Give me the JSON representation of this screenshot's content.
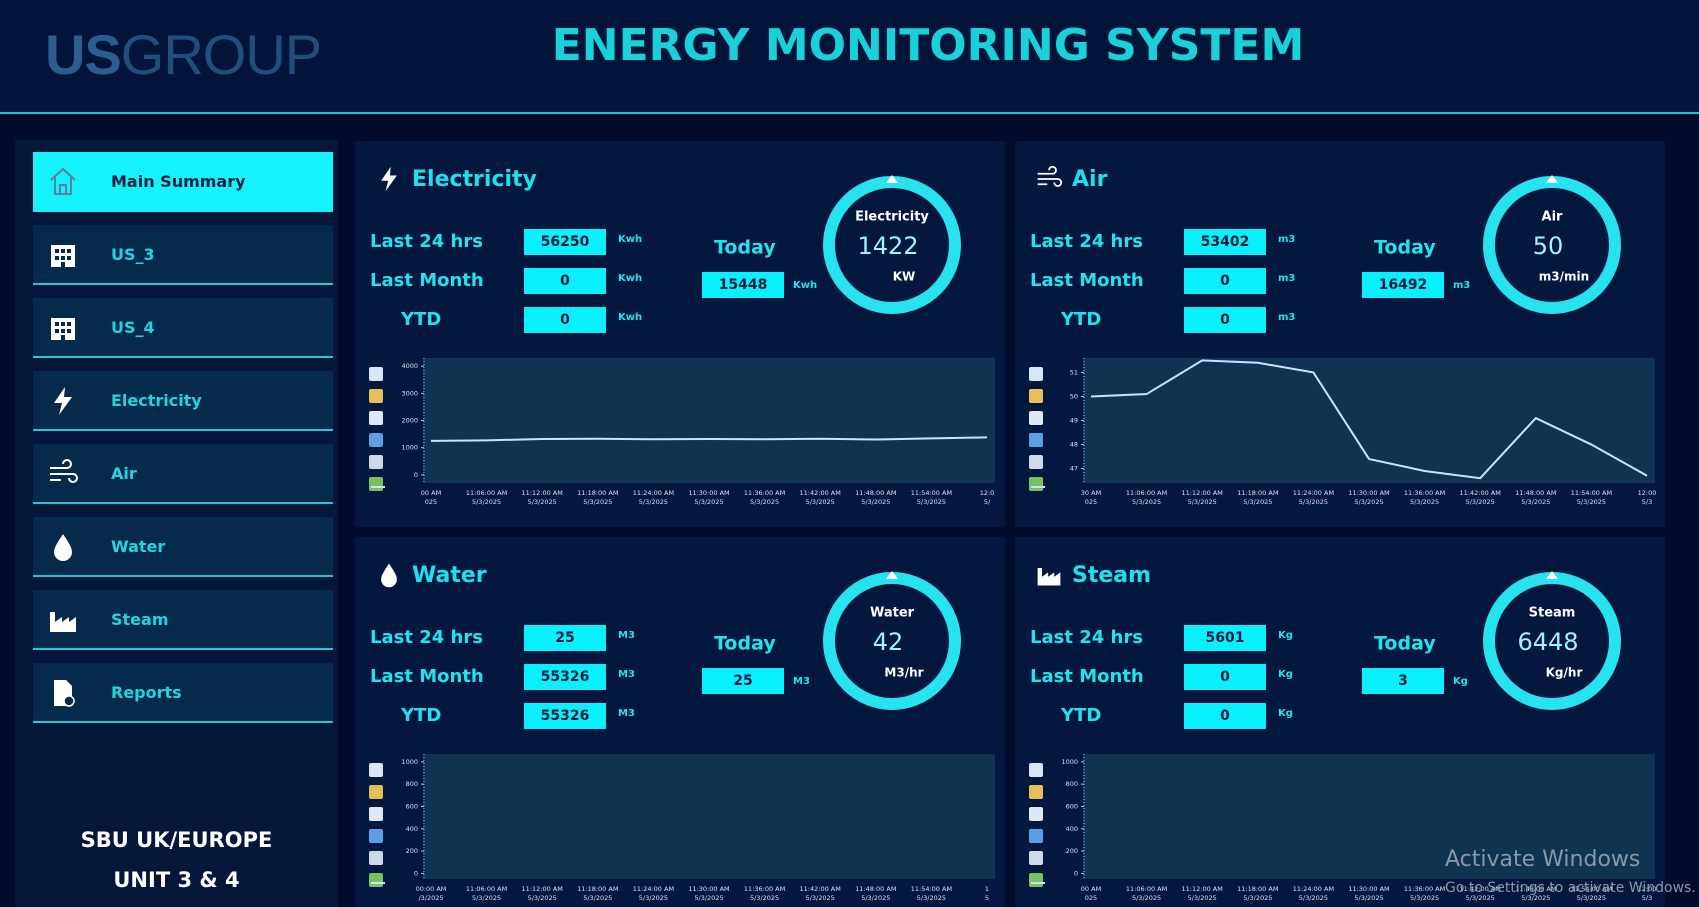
{
  "header": {
    "logo_a": "US",
    "logo_b": "GROUP",
    "title": "ENERGY MONITORING SYSTEM"
  },
  "nav": {
    "items": [
      "Main Summary",
      "US_3",
      "US_4",
      "Electricity",
      "Air",
      "Water",
      "Steam",
      "Reports"
    ],
    "active": 0,
    "footer": [
      "SBU UK/EUROPE",
      "UNIT 3 & 4"
    ]
  },
  "panels": [
    {
      "title": "Electricity",
      "icon": "bolt",
      "rows": [
        {
          "label": "Last 24 hrs",
          "value": 56250,
          "unit": "Kwh"
        },
        {
          "label": "Last Month",
          "value": 0,
          "unit": "Kwh"
        },
        {
          "label": "YTD",
          "value": 0,
          "unit": "Kwh"
        }
      ],
      "today": {
        "label": "Today",
        "value": 15448,
        "unit": "Kwh"
      },
      "gauge": {
        "name": "Electricity",
        "value": 1422,
        "unit": "KW"
      },
      "chart": {
        "type": "line",
        "color": "#c9e4ff",
        "ylim": [
          -300,
          4300
        ],
        "yticks": [
          0,
          1000,
          2000,
          3000,
          4000
        ],
        "xticks": [
          {
            "time": "00 AM",
            "date": "025"
          },
          {
            "time": "11:06:00 AM",
            "date": "5/3/2025"
          },
          {
            "time": "11:12:00 AM",
            "date": "5/3/2025"
          },
          {
            "time": "11:18:00 AM",
            "date": "5/3/2025"
          },
          {
            "time": "11:24:00 AM",
            "date": "5/3/2025"
          },
          {
            "time": "11:30:00 AM",
            "date": "5/3/2025"
          },
          {
            "time": "11:36:00 AM",
            "date": "5/3/2025"
          },
          {
            "time": "11:42:00 AM",
            "date": "5/3/2025"
          },
          {
            "time": "11:48:00 AM",
            "date": "5/3/2025"
          },
          {
            "time": "11:54:00 AM",
            "date": "5/3/2025"
          },
          {
            "time": "12:0",
            "date": "5/"
          }
        ],
        "values": [
          1250,
          1270,
          1320,
          1330,
          1310,
          1320,
          1310,
          1330,
          1300,
          1340,
          1380
        ]
      }
    },
    {
      "title": "Air",
      "icon": "wind",
      "rows": [
        {
          "label": "Last 24 hrs",
          "value": 53402,
          "unit": "m3"
        },
        {
          "label": "Last Month",
          "value": 0,
          "unit": "m3"
        },
        {
          "label": "YTD",
          "value": 0,
          "unit": "m3"
        }
      ],
      "today": {
        "label": "Today",
        "value": 16492,
        "unit": "m3"
      },
      "gauge": {
        "name": "Air",
        "value": 50,
        "unit": "m3/min"
      },
      "chart": {
        "type": "line",
        "color": "#c9e4ff",
        "ylim": [
          46.4,
          51.6
        ],
        "yticks": [
          47,
          48,
          49,
          50,
          51
        ],
        "xticks": [
          {
            "time": "30 AM",
            "date": "025"
          },
          {
            "time": "11:06:00 AM",
            "date": "5/3/2025"
          },
          {
            "time": "11:12:00 AM",
            "date": "5/3/2025"
          },
          {
            "time": "11:18:00 AM",
            "date": "5/3/2025"
          },
          {
            "time": "11:24:00 AM",
            "date": "5/3/2025"
          },
          {
            "time": "11:30:00 AM",
            "date": "5/3/2025"
          },
          {
            "time": "11:36:00 AM",
            "date": "5/3/2025"
          },
          {
            "time": "11:42:00 AM",
            "date": "5/3/2025"
          },
          {
            "time": "11:48:00 AM",
            "date": "5/3/2025"
          },
          {
            "time": "11:54:00 AM",
            "date": "5/3/2025"
          },
          {
            "time": "12:00",
            "date": "5/3"
          }
        ],
        "values": [
          50,
          50.1,
          51.5,
          51.4,
          51.0,
          47.4,
          46.9,
          46.6,
          49.1,
          48.0,
          46.7
        ]
      }
    },
    {
      "title": "Water",
      "icon": "drop",
      "rows": [
        {
          "label": "Last 24 hrs",
          "value": 25,
          "unit": "M3"
        },
        {
          "label": "Last Month",
          "value": 55326,
          "unit": "M3"
        },
        {
          "label": "YTD",
          "value": 55326,
          "unit": "M3"
        }
      ],
      "today": {
        "label": "Today",
        "value": 25,
        "unit": "M3"
      },
      "gauge": {
        "name": "Water",
        "value": 42,
        "unit": "M3/hr"
      },
      "chart": {
        "type": "line",
        "color": "#c9e4ff",
        "ylim": [
          -50,
          1070
        ],
        "yticks": [
          0,
          200,
          400,
          600,
          800,
          1000
        ],
        "xticks": [
          {
            "time": "00:00 AM",
            "date": "/3/2025"
          },
          {
            "time": "11:06:00 AM",
            "date": "5/3/2025"
          },
          {
            "time": "11:12:00 AM",
            "date": "5/3/2025"
          },
          {
            "time": "11:18:00 AM",
            "date": "5/3/2025"
          },
          {
            "time": "11:24:00 AM",
            "date": "5/3/2025"
          },
          {
            "time": "11:30:00 AM",
            "date": "5/3/2025"
          },
          {
            "time": "11:36:00 AM",
            "date": "5/3/2025"
          },
          {
            "time": "11:42:00 AM",
            "date": "5/3/2025"
          },
          {
            "time": "11:48:00 AM",
            "date": "5/3/2025"
          },
          {
            "time": "11:54:00 AM",
            "date": "5/3/2025"
          },
          {
            "time": "1",
            "date": "5"
          }
        ]
      }
    },
    {
      "title": "Steam",
      "icon": "factory",
      "rows": [
        {
          "label": "Last 24 hrs",
          "value": 5601,
          "unit": "Kg"
        },
        {
          "label": "Last Month",
          "value": 0,
          "unit": "Kg"
        },
        {
          "label": "YTD",
          "value": 0,
          "unit": "Kg"
        }
      ],
      "today": {
        "label": "Today",
        "value": 3,
        "unit": "Kg"
      },
      "gauge": {
        "name": "Steam",
        "value": 6448,
        "unit": "Kg/hr"
      },
      "chart": {
        "type": "line",
        "color": "#c9e4ff",
        "ylim": [
          -50,
          1070
        ],
        "yticks": [
          0,
          200,
          400,
          600,
          800,
          1000
        ],
        "xticks": [
          {
            "time": "00 AM",
            "date": "025"
          },
          {
            "time": "11:06:00 AM",
            "date": "5/3/2025"
          },
          {
            "time": "11:12:00 AM",
            "date": "5/3/2025"
          },
          {
            "time": "11:18:00 AM",
            "date": "5/3/2025"
          },
          {
            "time": "11:24:00 AM",
            "date": "5/3/2025"
          },
          {
            "time": "11:30:00 AM",
            "date": "5/3/2025"
          },
          {
            "time": "11:36:00 AM",
            "date": "5/3/2025"
          },
          {
            "time": "11:42:00 AM",
            "date": "5/3/2025"
          },
          {
            "time": "11:48:00 AM",
            "date": "5/3/2025"
          },
          {
            "time": "11:54:00 AM",
            "date": "5/3/2025"
          },
          {
            "time": "12:00",
            "date": "5/3"
          }
        ]
      }
    }
  ],
  "watermark": {
    "title": "Activate Windows",
    "subtitle": "Go to Settings to activate Windows."
  }
}
